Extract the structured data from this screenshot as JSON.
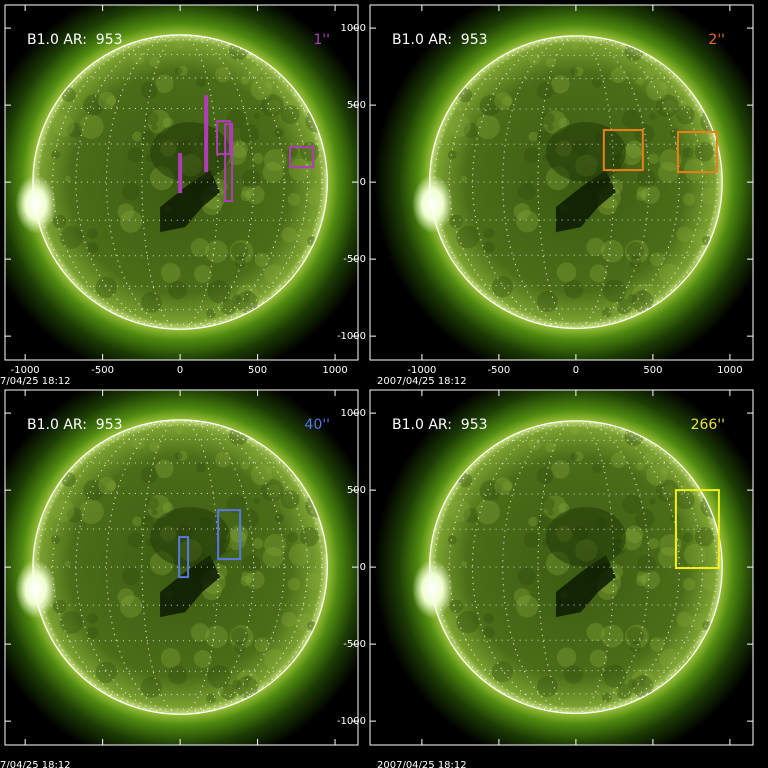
{
  "chart_data": [
    {
      "type": "image",
      "title": "B1.0 AR:  953",
      "label": "1''",
      "label_color": "#b03cb8",
      "date": "7/04/25 18:12",
      "xlim": [
        -1130,
        1148
      ],
      "ylim": [
        -1155,
        1150
      ],
      "xticks": [
        -1000,
        -500,
        0,
        500,
        1000
      ],
      "yticks": [
        -1000,
        -500,
        0,
        500,
        1000
      ],
      "labeled_axes": [
        "x"
      ],
      "box_color": "#b03cb8",
      "boxes": [
        {
          "x0": 0,
          "x1": 0,
          "y0": -65,
          "y1": 182
        },
        {
          "x0": 168,
          "x1": 168,
          "y0": 71,
          "y1": 558
        },
        {
          "x0": 245,
          "x1": 316,
          "y0": 182,
          "y1": 396
        },
        {
          "x0": 297,
          "x1": 329,
          "y0": -123,
          "y1": 377
        },
        {
          "x0": 716,
          "x1": 852,
          "y0": 97,
          "y1": 227
        }
      ]
    },
    {
      "type": "image",
      "title": "B1.0 AR:  953",
      "label": "2''",
      "label_color": "#e8702a",
      "date": "2007/04/25 18:12",
      "xlim": [
        -1337,
        1150
      ],
      "ylim": [
        -1155,
        1150
      ],
      "xticks": [
        -1000,
        -500,
        0,
        500,
        1000
      ],
      "yticks": [
        -1000,
        -500,
        0,
        500,
        1000
      ],
      "labeled_axes": [
        "x",
        "y"
      ],
      "box_color": "#e8801a",
      "boxes": [
        {
          "x0": 188,
          "x1": 428,
          "y0": 78,
          "y1": 338
        },
        {
          "x0": 669,
          "x1": 909,
          "y0": 65,
          "y1": 325
        }
      ]
    },
    {
      "type": "image",
      "title": "B1.0 AR:  953",
      "label": "40''",
      "label_color": "#5a78e0",
      "date": "7/04/25 18:12",
      "xlim": [
        -1130,
        1148
      ],
      "ylim": [
        -1155,
        1150
      ],
      "xticks": [
        -1000,
        -500,
        0,
        500,
        1000
      ],
      "yticks": [
        -1000,
        -500,
        0,
        500,
        1000
      ],
      "labeled_axes": [],
      "box_color": "#5a78e0",
      "boxes": [
        {
          "x0": 0,
          "x1": 45,
          "y0": -65,
          "y1": 195
        },
        {
          "x0": 252,
          "x1": 381,
          "y0": 52,
          "y1": 370
        }
      ]
    },
    {
      "type": "image",
      "title": "B1.0 AR:  953",
      "label": "266''",
      "label_color": "#e8e040",
      "date": "2007/04/25 18:12",
      "xlim": [
        -1337,
        1150
      ],
      "ylim": [
        -1155,
        1150
      ],
      "xticks": [
        -1000,
        -500,
        0,
        500,
        1000
      ],
      "yticks": [
        -1000,
        -500,
        0,
        500,
        1000
      ],
      "labeled_axes": [
        "y"
      ],
      "box_color": "#f0f020",
      "boxes": [
        {
          "x0": 656,
          "x1": 922,
          "y0": -6,
          "y1": 500
        }
      ]
    }
  ]
}
